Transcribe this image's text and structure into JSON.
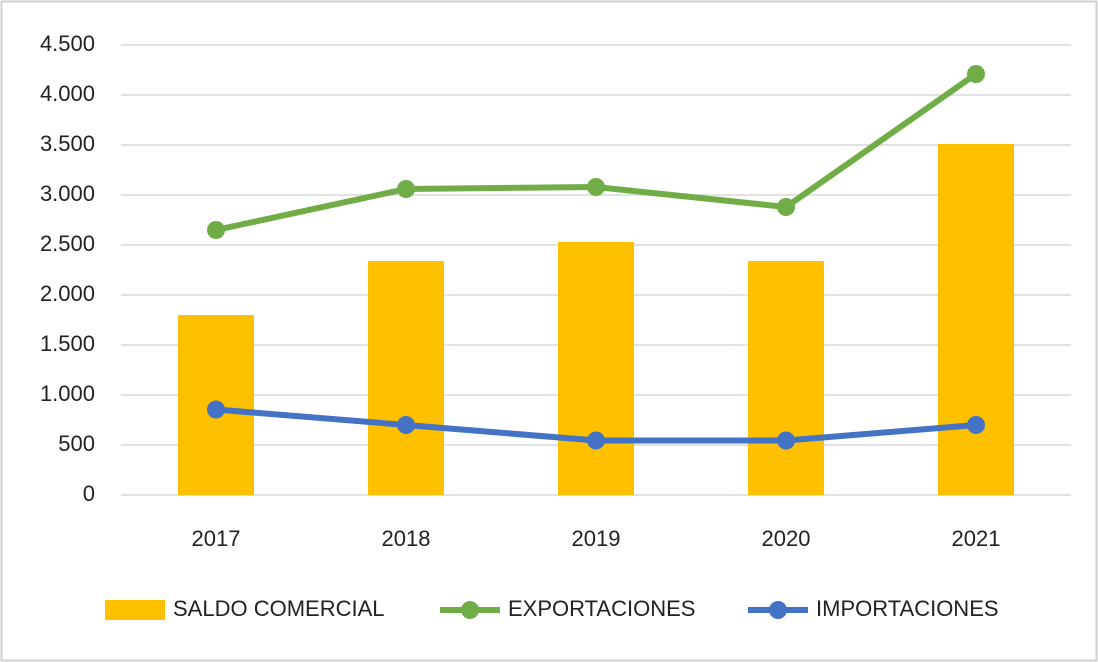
{
  "chart_data": {
    "type": "bar",
    "categories": [
      "2017",
      "2018",
      "2019",
      "2020",
      "2021"
    ],
    "series": [
      {
        "name": "SALDO COMERCIAL",
        "type": "bar",
        "color": "#ffc000",
        "values": [
          1800,
          2340,
          2530,
          2340,
          3510
        ]
      },
      {
        "name": "EXPORTACIONES",
        "type": "line",
        "color": "#70ad47",
        "values": [
          2650,
          3060,
          3080,
          2880,
          4210
        ]
      },
      {
        "name": "IMPORTACIONES",
        "type": "line",
        "color": "#4472c4",
        "values": [
          855,
          700,
          545,
          545,
          700
        ]
      }
    ],
    "ylim": [
      0,
      4500
    ],
    "yticks": [
      0,
      500,
      {
        "value": 1000,
        "label": "1.000"
      },
      {
        "value": 1500,
        "label": "1.500"
      },
      {
        "value": 2000,
        "label": "2.000"
      },
      {
        "value": 2500,
        "label": "2.500"
      },
      {
        "value": 3000,
        "label": "3.000"
      },
      {
        "value": 3500,
        "label": "3.500"
      },
      {
        "value": 4000,
        "label": "4.000"
      },
      {
        "value": 4500,
        "label": "4.500"
      }
    ],
    "grid": true,
    "legend": "bottom"
  }
}
